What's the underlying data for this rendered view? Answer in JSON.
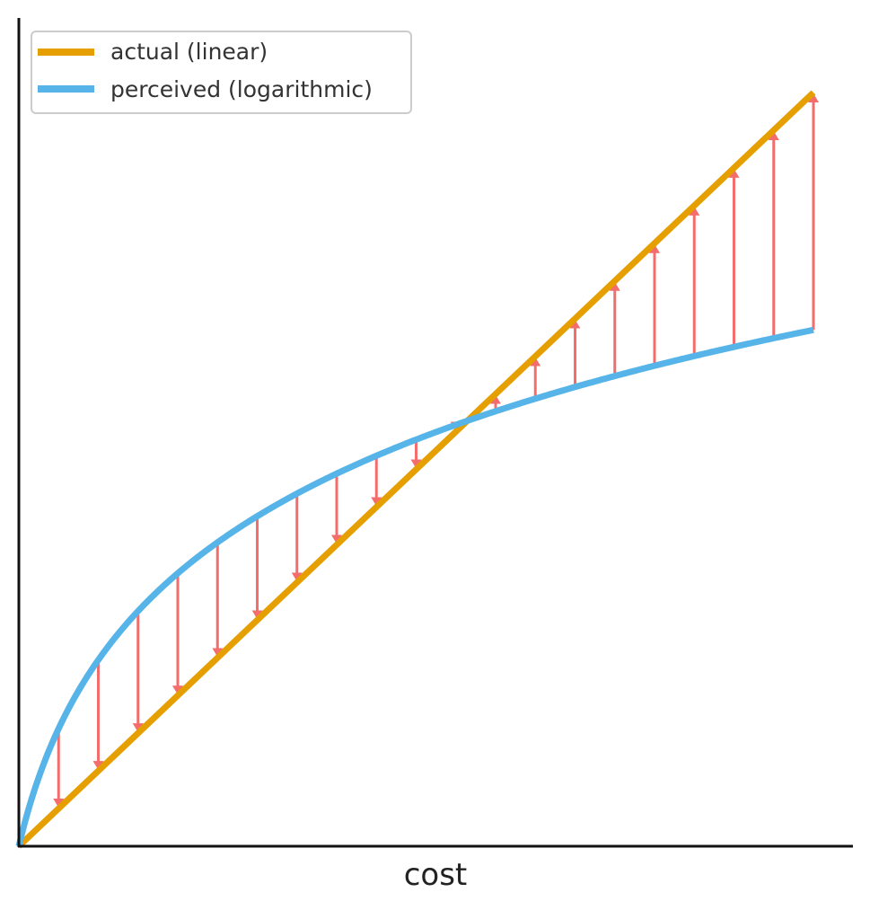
{
  "chart_data": {
    "type": "line",
    "title": "",
    "xlabel": "cost",
    "ylabel": "",
    "xlim": [
      0,
      20.5
    ],
    "ylim": [
      0,
      20
    ],
    "x_ticks_visible": false,
    "y_ticks_visible": false,
    "legend": {
      "position": "top-left",
      "entries": [
        {
          "label": "actual (linear)",
          "series": "actual"
        },
        {
          "label": "perceived (logarithmic)",
          "series": "perceived"
        }
      ]
    },
    "series": [
      {
        "name": "actual (linear)",
        "key": "actual",
        "color": "#E69F00",
        "function": "y = x",
        "x": [
          0,
          20
        ],
        "y": [
          0,
          20
        ]
      },
      {
        "name": "perceived (logarithmic)",
        "key": "perceived",
        "color": "#56B4E9",
        "function": "y = 4.5 * ln(1 + x)",
        "x": [
          0,
          1,
          2,
          3,
          4,
          5,
          6,
          7,
          8,
          9,
          10,
          11,
          12,
          13,
          14,
          15,
          16,
          17,
          18,
          19,
          20
        ],
        "y": [
          0,
          3.12,
          4.94,
          6.24,
          7.24,
          8.06,
          8.76,
          9.36,
          9.89,
          10.36,
          10.79,
          11.18,
          11.54,
          11.88,
          12.19,
          12.48,
          12.75,
          13.01,
          13.25,
          13.48,
          13.7
        ]
      }
    ],
    "arrows": {
      "color": "#F46D6D",
      "description": "arrows from perceived curve to actual line at each integer cost",
      "x": [
        1,
        2,
        3,
        4,
        5,
        6,
        7,
        8,
        9,
        10,
        11,
        12,
        13,
        14,
        15,
        16,
        17,
        18,
        19,
        20
      ]
    }
  }
}
